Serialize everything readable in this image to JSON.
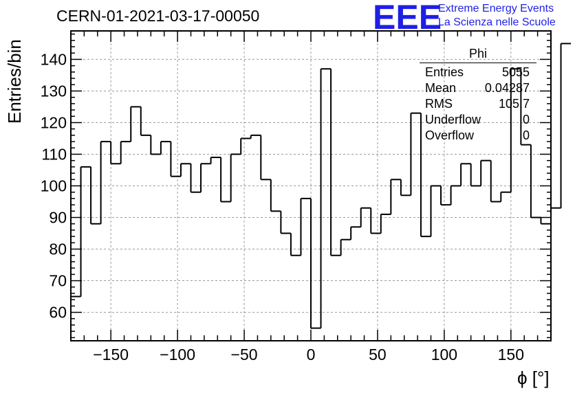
{
  "header": {
    "run_title": "CERN-01-2021-03-17-00050",
    "logo_text": "EEE",
    "logo_line1": "Extreme Energy Events",
    "logo_line2": "La Scienza nelle Scuole"
  },
  "stats_box": {
    "name": "Phi",
    "rows": [
      {
        "label": "Entries",
        "value": "5055"
      },
      {
        "label": "Mean",
        "value": "0.04287"
      },
      {
        "label": "RMS",
        "value": "105.7"
      },
      {
        "label": "Underflow",
        "value": "0"
      },
      {
        "label": "Overflow",
        "value": "0"
      }
    ]
  },
  "colors": {
    "logo": "#1f1fe6",
    "line": "#000000",
    "grid": "#999999"
  },
  "chart_data": {
    "type": "bar",
    "style": "step-histogram",
    "title": "CERN-01-2021-03-17-00050",
    "xlabel": "ϕ [°]",
    "ylabel": "Entries/bin",
    "xlim": [
      -180,
      180
    ],
    "ylim": [
      51,
      149
    ],
    "grid": true,
    "x_ticks": [
      -150,
      -100,
      -50,
      0,
      50,
      100,
      150
    ],
    "x_tick_labels": [
      "−150",
      "−100",
      "−50",
      "0",
      "50",
      "100",
      "150"
    ],
    "y_ticks": [
      60,
      70,
      80,
      90,
      100,
      110,
      120,
      130,
      140
    ],
    "y_tick_labels": [
      "60",
      "70",
      "80",
      "90",
      "100",
      "110",
      "120",
      "130",
      "140"
    ],
    "bin_edges_start": -180,
    "bin_width": 7.5,
    "values": [
      65,
      106,
      88,
      114,
      107,
      114,
      125,
      116,
      110,
      114,
      103,
      107,
      98,
      107,
      109,
      95,
      110,
      115,
      116,
      102,
      92,
      85,
      78,
      96,
      55,
      137,
      78,
      83,
      87,
      93,
      85,
      91,
      102,
      97,
      123,
      84,
      100,
      94,
      100,
      107,
      100,
      108,
      95,
      98,
      137,
      113,
      90,
      88,
      93,
      145
    ]
  }
}
